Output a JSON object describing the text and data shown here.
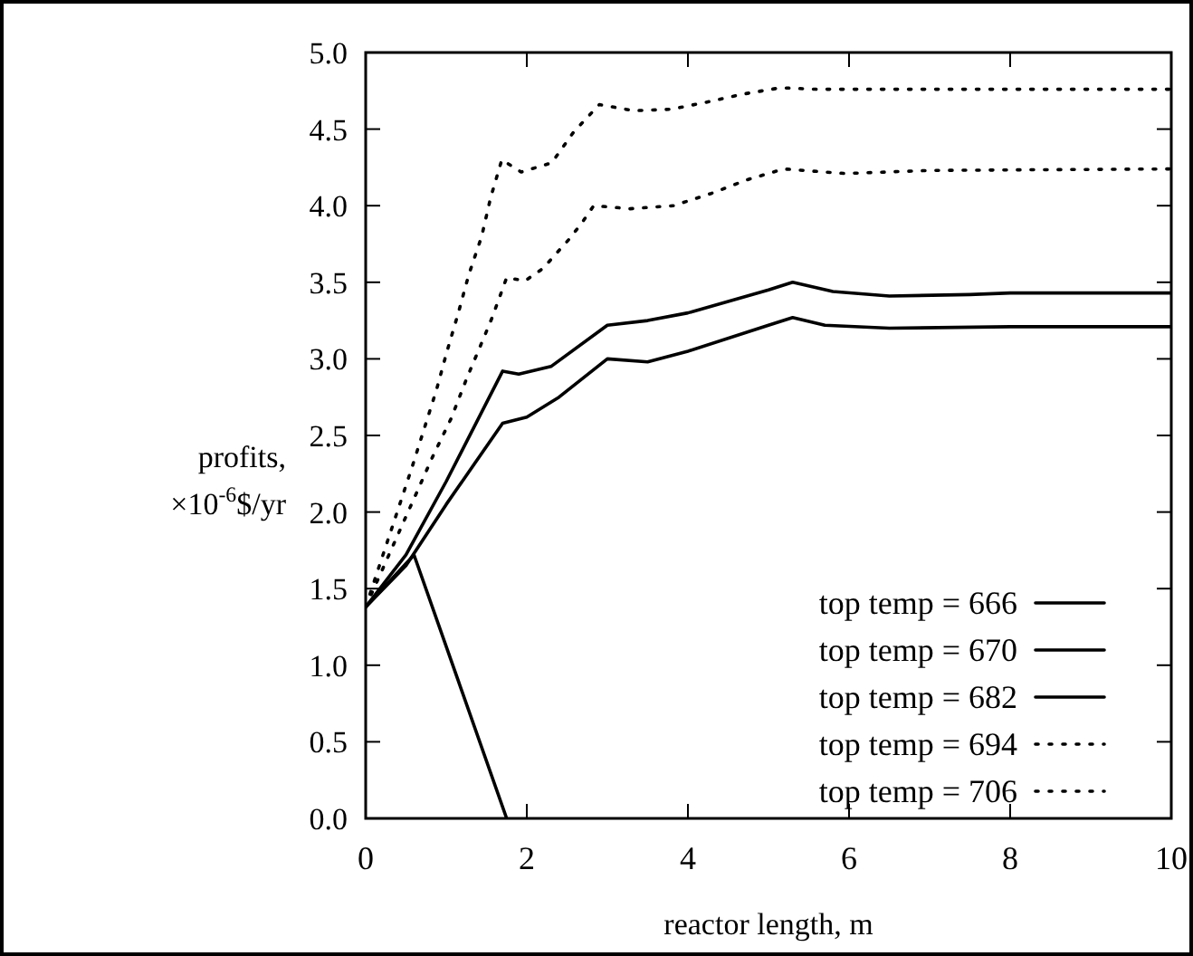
{
  "chart_data": {
    "type": "line",
    "xlabel": "reactor length, m",
    "ylabel": "profits,\n×10$^{-6}$$/yr",
    "xlim": [
      0,
      10
    ],
    "ylim": [
      0,
      5
    ],
    "xticks": [
      0,
      2,
      4,
      6,
      8,
      10
    ],
    "yticks": [
      {
        "value": 0,
        "label": "0.0"
      },
      {
        "value": 0.5,
        "label": "0.5"
      },
      {
        "value": 1,
        "label": "1.0"
      },
      {
        "value": 1.5,
        "label": "1.5"
      },
      {
        "value": 2,
        "label": "2.0"
      },
      {
        "value": 2.5,
        "label": "2.5"
      },
      {
        "value": 3,
        "label": "3.0"
      },
      {
        "value": 3.5,
        "label": "3.5"
      },
      {
        "value": 4,
        "label": "4.0"
      },
      {
        "value": 4.5,
        "label": "4.5"
      },
      {
        "value": 5,
        "label": "5.0"
      }
    ],
    "legend": "bottom right",
    "grid": false,
    "series": [
      {
        "name": "top temp = 666",
        "color": "#000000",
        "line_style": "solid",
        "x": [
          0,
          0.3,
          0.6,
          1.75
        ],
        "values": [
          1.38,
          1.55,
          1.72,
          0
        ]
      },
      {
        "name": "top temp = 670",
        "color": "#000000",
        "line_style": "solid",
        "x": [
          0,
          0.5,
          1,
          1.7,
          2,
          2.4,
          3,
          3.5,
          4,
          5,
          5.3,
          5.7,
          6.5,
          8,
          10
        ],
        "values": [
          1.38,
          1.65,
          2.05,
          2.58,
          2.62,
          2.75,
          3.0,
          2.98,
          3.05,
          3.22,
          3.27,
          3.22,
          3.2,
          3.21,
          3.21
        ]
      },
      {
        "name": "top temp = 682",
        "color": "#000000",
        "line_style": "solid",
        "x": [
          0,
          0.5,
          1,
          1.7,
          1.9,
          2.3,
          3,
          3.5,
          4,
          5,
          5.3,
          5.8,
          6.5,
          7.5,
          8,
          10
        ],
        "values": [
          1.38,
          1.72,
          2.2,
          2.92,
          2.9,
          2.95,
          3.22,
          3.25,
          3.3,
          3.45,
          3.5,
          3.44,
          3.41,
          3.42,
          3.43,
          3.43
        ]
      },
      {
        "name": "top temp = 694",
        "color": "#000000",
        "line_style": "dotted",
        "x": [
          0,
          0.83,
          1.06,
          1.26,
          1.46,
          1.57,
          1.75,
          1.98,
          2.2,
          2.54,
          2.7,
          2.83,
          3.28,
          3.82,
          4.29,
          4.74,
          5.19,
          5.95,
          7,
          10
        ],
        "values": [
          1.38,
          2.36,
          2.61,
          2.88,
          3.13,
          3.27,
          3.53,
          3.51,
          3.59,
          3.79,
          3.9,
          4.0,
          3.98,
          4.0,
          4.08,
          4.17,
          4.24,
          4.21,
          4.23,
          4.24
        ]
      },
      {
        "name": "top temp = 706",
        "color": "#000000",
        "line_style": "dotted",
        "x": [
          0,
          0.58,
          0.88,
          1.01,
          1.15,
          1.28,
          1.44,
          1.55,
          1.69,
          1.93,
          2.31,
          2.58,
          2.9,
          3.33,
          3.8,
          4.27,
          4.7,
          5.15,
          5.6,
          10
        ],
        "values": [
          1.38,
          2.3,
          2.8,
          3.05,
          3.3,
          3.55,
          3.8,
          4.05,
          4.3,
          4.22,
          4.28,
          4.48,
          4.66,
          4.62,
          4.63,
          4.68,
          4.73,
          4.77,
          4.76,
          4.76
        ]
      }
    ]
  }
}
